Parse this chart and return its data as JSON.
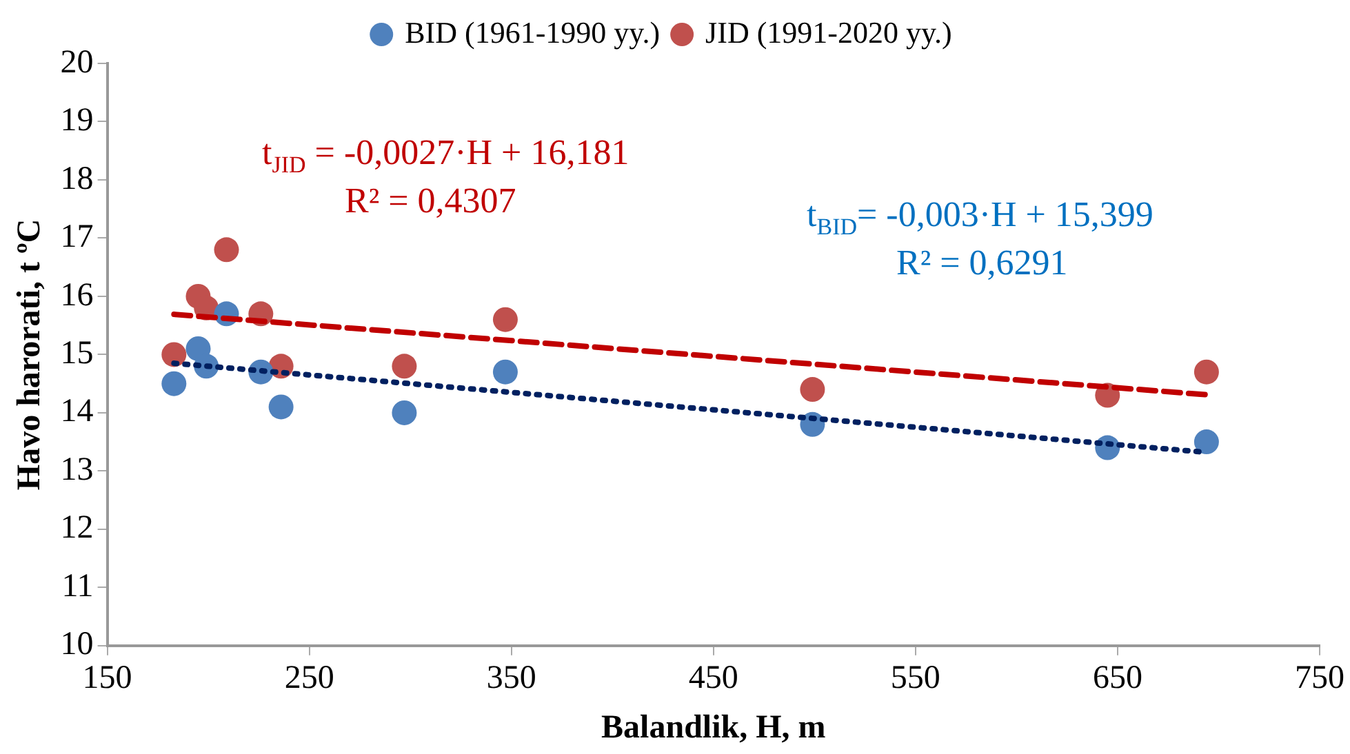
{
  "chart_data": {
    "type": "scatter",
    "xlabel": "Balandlik, H, m",
    "ylabel": "Havo harorati, t ºC",
    "xlim": [
      150,
      750
    ],
    "xticks": [
      150,
      250,
      350,
      450,
      550,
      650,
      750
    ],
    "ylim": [
      10,
      20
    ],
    "yticks": [
      10,
      11,
      12,
      13,
      14,
      15,
      16,
      17,
      18,
      19,
      20
    ],
    "grid": false,
    "legend": "top",
    "marker": "circle",
    "series": [
      {
        "name": "BID (1961-1990 yy.)",
        "color": "#4f81bd",
        "x": [
          183,
          195,
          199,
          209,
          226,
          236,
          297,
          347,
          499,
          645,
          694
        ],
        "values": [
          14.5,
          15.1,
          14.8,
          15.7,
          14.7,
          14.1,
          14.0,
          14.7,
          13.8,
          13.4,
          13.5
        ]
      },
      {
        "name": "JID (1991-2020 yy.)",
        "color": "#c0504d",
        "x": [
          183,
          195,
          199,
          209,
          226,
          236,
          297,
          347,
          499,
          645,
          694
        ],
        "values": [
          15.0,
          16.0,
          15.8,
          16.8,
          15.7,
          14.8,
          14.8,
          15.6,
          14.4,
          14.3,
          14.7
        ]
      },
      {
        "type": "line",
        "color": "#c00000",
        "line_style": "dashed",
        "marker": "none",
        "x": [
          183,
          694
        ],
        "values": [
          15.69,
          14.31
        ]
      },
      {
        "type": "line",
        "color": "#002060",
        "line_style": "dotted",
        "marker": "none",
        "x": [
          183,
          694
        ],
        "values": [
          14.85,
          13.32
        ]
      }
    ],
    "annotations": [
      "t$_{JID}$ = -0,0027·H + 16,181",
      "R² = 0,4307",
      "t$_{BID}$= -0,003·H + 15,399",
      "R² = 0,6291"
    ]
  }
}
